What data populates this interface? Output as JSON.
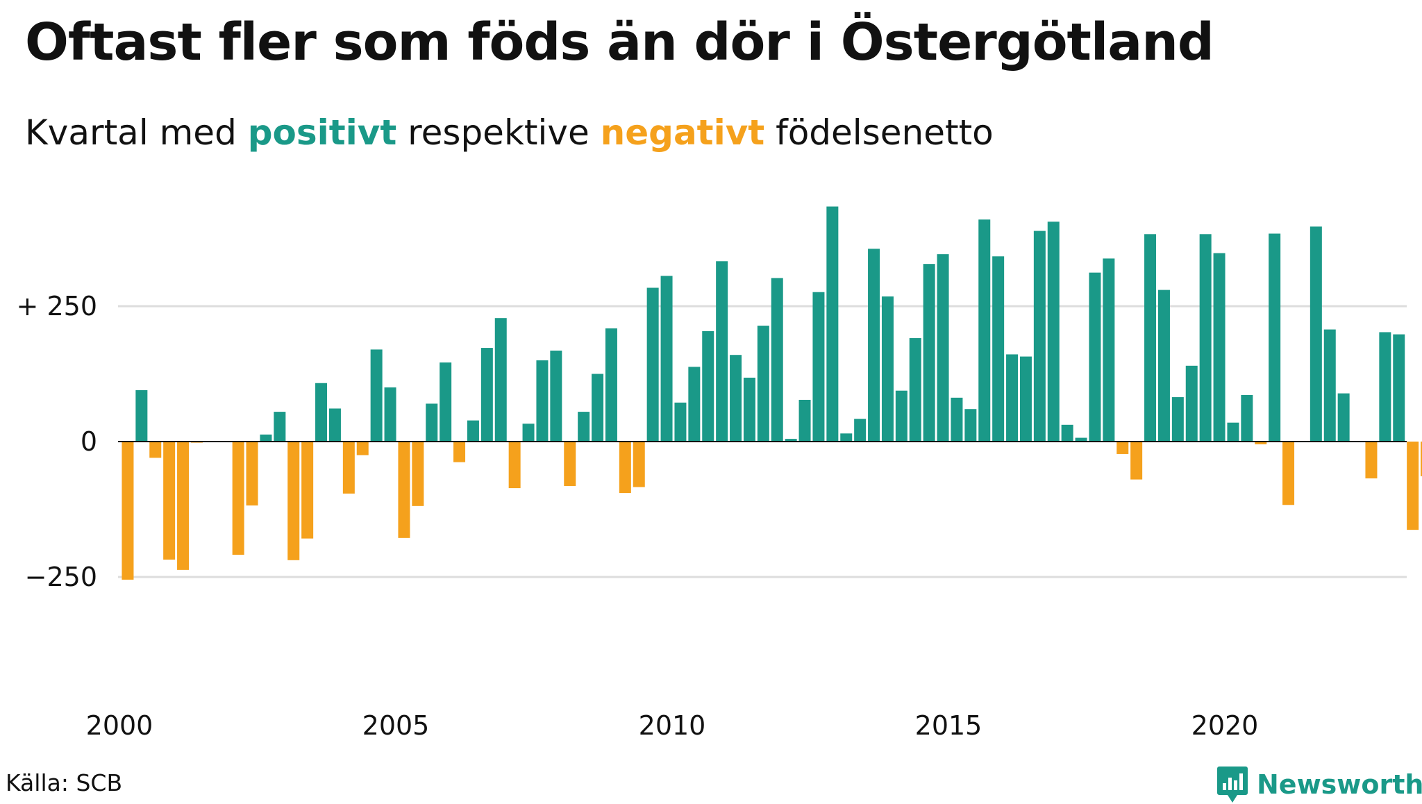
{
  "title": "Oftast fler som föds än dör i Östergötland",
  "subtitle": {
    "prefix": "Kvartal med ",
    "positive": "positivt",
    "middle": " respektive ",
    "negative": "negativt",
    "suffix": " födelsenetto"
  },
  "source": "Källa: SCB",
  "brand": "Newsworthy",
  "colors": {
    "positive": "#1a9988",
    "negative": "#f5a11c",
    "grid": "#dddddd",
    "zero": "#111111"
  },
  "chart_data": {
    "type": "bar",
    "title": "Oftast fler som föds än dör i Östergötland",
    "subtitle": "Kvartal med positivt respektive negativt födelsenetto",
    "y_ticks": [
      {
        "value": 250,
        "label": "+ 250"
      },
      {
        "value": -250,
        "label": "−250"
      }
    ],
    "x_ticks": [
      {
        "value": 2000,
        "label": "2000"
      },
      {
        "value": 2005,
        "label": "2005"
      },
      {
        "value": 2010,
        "label": "2010"
      },
      {
        "value": 2015,
        "label": "2015"
      },
      {
        "value": 2020,
        "label": "2020"
      }
    ],
    "ylim": [
      -450,
      450
    ],
    "xlim": [
      1999.9,
      2023.6
    ],
    "start_year": 2000,
    "grid": true,
    "legend": "none",
    "values": [
      -255,
      95,
      -30,
      -218,
      -237,
      -2,
      0,
      0,
      -209,
      -118,
      13,
      55,
      -219,
      -179,
      108,
      61,
      -96,
      -25,
      170,
      100,
      -178,
      -119,
      70,
      146,
      -38,
      39,
      173,
      228,
      -86,
      33,
      150,
      168,
      -82,
      55,
      125,
      209,
      -95,
      -84,
      284,
      306,
      72,
      138,
      204,
      333,
      160,
      118,
      214,
      302,
      5,
      77,
      276,
      434,
      15,
      42,
      356,
      268,
      94,
      191,
      328,
      346,
      81,
      60,
      410,
      342,
      161,
      157,
      389,
      406,
      31,
      7,
      312,
      338,
      -23,
      -70,
      383,
      280,
      82,
      140,
      383,
      348,
      35,
      86,
      -5,
      384,
      -117,
      0,
      397,
      207,
      89,
      0,
      -68,
      202,
      198,
      -163,
      -64
    ]
  }
}
